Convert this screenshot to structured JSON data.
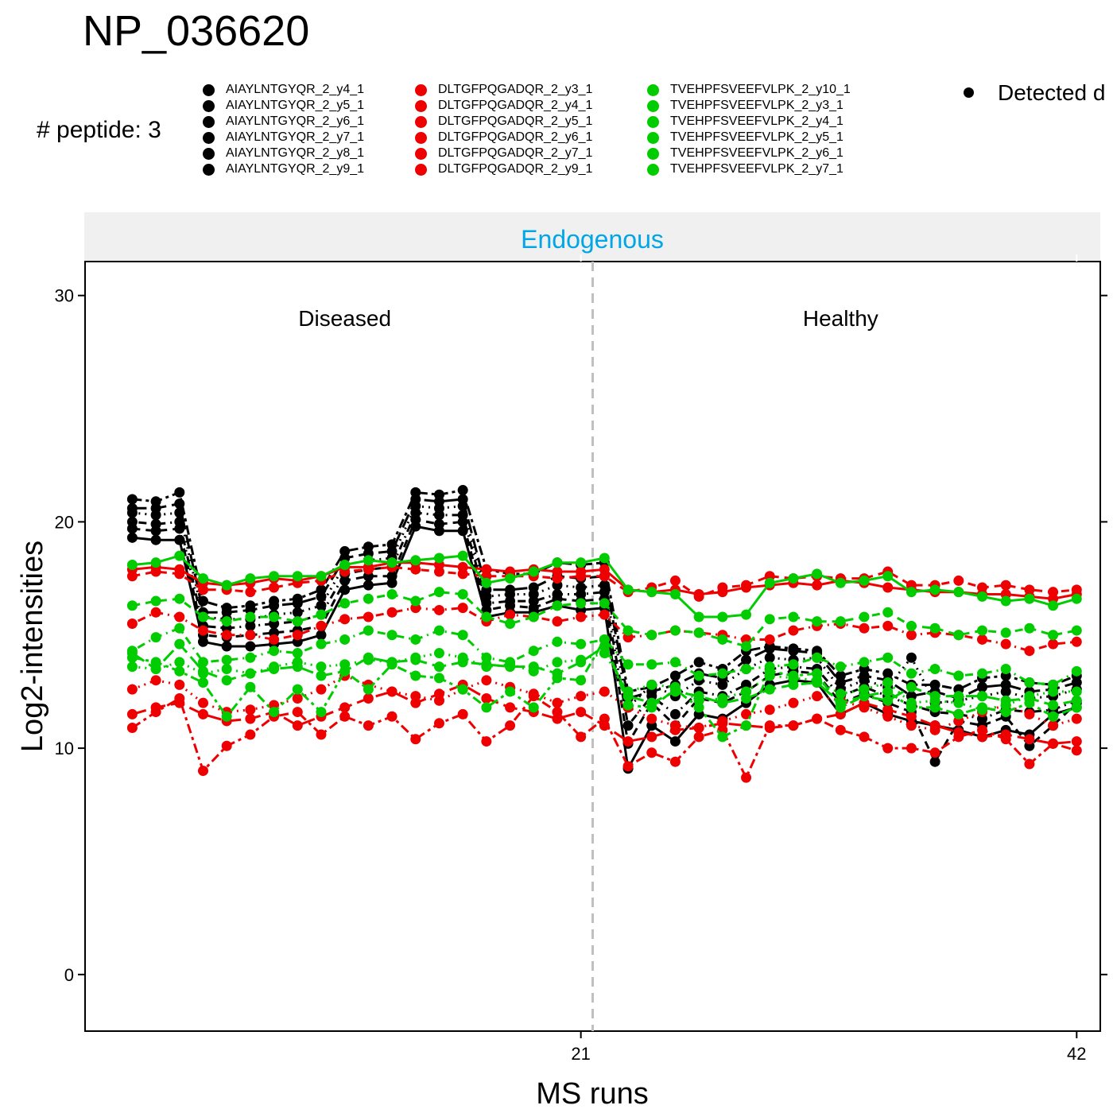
{
  "title": "NP_036620",
  "peptide_count": "# peptide: 3",
  "legend_detected": "Detected d",
  "colors": {
    "AIAYLNTGYQR": "#000000",
    "DLTGFPQGADQR": "#ee0000",
    "TVEHPFSVEEFVLPK": "#00cc00",
    "strip": "#f0f0f0",
    "strip_text": "#00a6e6",
    "divider": "#bfbfbf"
  },
  "legend": [
    {
      "group": "AIAYLNTGYQR",
      "color": "#000000",
      "items": [
        "AIAYLNTGYQR_2_y4_1",
        "AIAYLNTGYQR_2_y5_1",
        "AIAYLNTGYQR_2_y6_1",
        "AIAYLNTGYQR_2_y7_1",
        "AIAYLNTGYQR_2_y8_1",
        "AIAYLNTGYQR_2_y9_1"
      ]
    },
    {
      "group": "DLTGFPQGADQR",
      "color": "#ee0000",
      "items": [
        "DLTGFPQGADQR_2_y3_1",
        "DLTGFPQGADQR_2_y4_1",
        "DLTGFPQGADQR_2_y5_1",
        "DLTGFPQGADQR_2_y6_1",
        "DLTGFPQGADQR_2_y7_1",
        "DLTGFPQGADQR_2_y9_1"
      ]
    },
    {
      "group": "TVEHPFSVEEFVLPK",
      "color": "#00cc00",
      "items": [
        "TVEHPFSVEEFVLPK_2_y10_1",
        "TVEHPFSVEEFVLPK_2_y3_1",
        "TVEHPFSVEEFVLPK_2_y4_1",
        "TVEHPFSVEEFVLPK_2_y5_1",
        "TVEHPFSVEEFVLPK_2_y6_1",
        "TVEHPFSVEEFVLPK_2_y7_1"
      ]
    }
  ],
  "chart_data": {
    "type": "line",
    "strip_label": "Endogenous",
    "xlabel": "MS runs",
    "ylabel": "Log2-intensities",
    "xlim": [
      0,
      43
    ],
    "ylim": [
      -2.5,
      31.5
    ],
    "xticks": [
      21,
      42
    ],
    "yticks": [
      0,
      10,
      20,
      30
    ],
    "condition_divider_x": 21.5,
    "conditions": [
      {
        "label": "Diseased",
        "x": 11,
        "y": 29
      },
      {
        "label": "Healthy",
        "x": 32,
        "y": 29
      }
    ],
    "x": [
      2,
      3,
      4,
      5,
      6,
      7,
      8,
      9,
      10,
      11,
      12,
      13,
      14,
      15,
      16,
      17,
      18,
      19,
      20,
      21,
      22,
      23,
      24,
      25,
      26,
      27,
      28,
      29,
      30,
      31,
      32,
      33,
      34,
      35,
      36,
      37,
      38,
      39,
      40,
      41,
      42
    ],
    "series": [
      {
        "name": "AIAYLNTGYQR_2_y4_1",
        "color": "#000000",
        "dash": "solid",
        "values": [
          19.3,
          19.2,
          19.2,
          14.7,
          14.5,
          14.5,
          14.6,
          14.7,
          15.0,
          17.0,
          17.2,
          17.3,
          19.8,
          19.6,
          19.6,
          15.8,
          16.0,
          16.0,
          16.3,
          16.1,
          16.2,
          9.1,
          11.0,
          10.3,
          11.5,
          11.3,
          12.0,
          12.8,
          13.0,
          12.9,
          11.5,
          12.0,
          11.5,
          11.2,
          11.0,
          10.8,
          10.5,
          10.8,
          10.6,
          11.5,
          11.8
        ]
      },
      {
        "name": "AIAYLNTGYQR_2_y5_1",
        "color": "#000000",
        "dash": "dashed",
        "values": [
          19.7,
          19.6,
          19.7,
          15.0,
          14.9,
          15.0,
          15.1,
          15.2,
          15.4,
          17.4,
          17.6,
          17.6,
          20.1,
          19.9,
          20.0,
          16.1,
          16.3,
          16.2,
          16.6,
          16.5,
          16.6,
          10.2,
          12.0,
          11.0,
          12.2,
          12.0,
          12.5,
          13.2,
          13.4,
          13.3,
          12.0,
          12.4,
          12.0,
          11.6,
          9.4,
          11.2,
          11.0,
          11.4,
          10.1,
          11.0,
          12.0
        ]
      },
      {
        "name": "AIAYLNTGYQR_2_y6_1",
        "color": "#000000",
        "dash": "dotdash",
        "values": [
          20.0,
          19.9,
          20.0,
          15.4,
          15.3,
          15.4,
          15.5,
          15.6,
          15.9,
          17.7,
          17.9,
          18.0,
          20.4,
          20.3,
          20.3,
          16.4,
          16.5,
          16.5,
          16.8,
          16.8,
          16.9,
          11.0,
          12.3,
          11.5,
          12.5,
          12.3,
          12.8,
          13.5,
          13.6,
          13.5,
          12.3,
          12.7,
          12.3,
          11.9,
          11.6,
          11.5,
          11.3,
          11.7,
          11.6,
          11.7,
          12.1
        ]
      },
      {
        "name": "AIAYLNTGYQR_2_y7_1",
        "color": "#000000",
        "dash": "dotted",
        "values": [
          20.4,
          20.3,
          20.4,
          15.8,
          15.7,
          15.7,
          15.9,
          16.0,
          16.3,
          18.1,
          18.3,
          18.4,
          20.7,
          20.6,
          20.7,
          16.7,
          16.8,
          16.8,
          17.2,
          17.1,
          17.2,
          11.8,
          12.8,
          12.3,
          13.0,
          12.8,
          13.5,
          14.0,
          13.9,
          14.0,
          12.6,
          13.0,
          12.7,
          14.0,
          12.0,
          12.1,
          12.3,
          12.5,
          12.2,
          12.3,
          12.6
        ]
      },
      {
        "name": "AIAYLNTGYQR_2_y8_1",
        "color": "#000000",
        "dash": "longdash",
        "values": [
          20.6,
          20.6,
          20.8,
          16.0,
          16.0,
          16.1,
          16.3,
          16.4,
          16.7,
          18.4,
          18.6,
          18.7,
          21.0,
          20.9,
          21.0,
          17.0,
          17.0,
          17.1,
          17.6,
          17.5,
          17.6,
          12.2,
          12.5,
          12.8,
          13.3,
          13.1,
          13.9,
          14.4,
          14.3,
          14.2,
          12.9,
          13.2,
          13.0,
          12.3,
          12.5,
          12.2,
          12.7,
          12.8,
          12.5,
          12.6,
          12.9
        ]
      },
      {
        "name": "AIAYLNTGYQR_2_y9_1",
        "color": "#000000",
        "dash": "twodash",
        "values": [
          21.0,
          20.9,
          21.3,
          16.5,
          16.2,
          16.3,
          16.5,
          16.6,
          17.0,
          18.7,
          18.9,
          19.0,
          21.3,
          21.2,
          21.4,
          17.9,
          17.7,
          17.7,
          18.2,
          18.1,
          18.2,
          12.5,
          12.7,
          13.2,
          13.8,
          13.5,
          14.3,
          14.5,
          14.4,
          14.3,
          13.2,
          13.5,
          13.3,
          12.8,
          12.8,
          12.6,
          13.1,
          13.2,
          12.9,
          12.8,
          13.2
        ]
      },
      {
        "name": "DLTGFPQGADQR_2_y3_1",
        "color": "#ee0000",
        "dash": "solid",
        "values": [
          17.9,
          18.0,
          17.9,
          17.3,
          17.2,
          17.3,
          17.5,
          17.4,
          17.6,
          18.0,
          18.0,
          18.2,
          18.2,
          18.1,
          18.0,
          17.9,
          17.8,
          17.9,
          17.8,
          17.8,
          17.9,
          17.0,
          16.9,
          17.0,
          16.8,
          16.9,
          17.1,
          17.2,
          17.3,
          17.2,
          17.4,
          17.3,
          17.1,
          17.0,
          16.9,
          16.9,
          16.8,
          16.8,
          16.7,
          16.6,
          16.8
        ]
      },
      {
        "name": "DLTGFPQGADQR_2_y4_1",
        "color": "#ee0000",
        "dash": "dashed",
        "values": [
          17.6,
          17.8,
          17.7,
          17.0,
          17.0,
          16.9,
          17.1,
          17.3,
          17.4,
          17.8,
          17.9,
          18.0,
          17.9,
          17.8,
          17.7,
          17.6,
          17.6,
          17.6,
          17.5,
          17.6,
          17.6,
          16.9,
          17.1,
          17.4,
          16.7,
          17.1,
          17.2,
          17.6,
          17.5,
          17.6,
          17.5,
          17.5,
          17.8,
          17.2,
          17.2,
          17.4,
          17.1,
          17.2,
          17.0,
          16.9,
          17.0
        ]
      },
      {
        "name": "DLTGFPQGADQR_2_y5_1",
        "color": "#ee0000",
        "dash": "dotdash",
        "values": [
          15.5,
          16.0,
          15.8,
          15.2,
          15.0,
          15.0,
          14.8,
          15.0,
          15.4,
          15.7,
          15.8,
          16.0,
          16.2,
          16.1,
          16.2,
          15.6,
          15.9,
          15.8,
          15.6,
          15.8,
          15.9,
          14.9,
          15.0,
          15.2,
          15.1,
          15.0,
          14.8,
          14.8,
          15.2,
          15.4,
          15.5,
          15.3,
          15.4,
          15.0,
          15.1,
          15.0,
          14.8,
          14.6,
          14.3,
          14.6,
          14.7
        ]
      },
      {
        "name": "DLTGFPQGADQR_2_y6_1",
        "color": "#ee0000",
        "dash": "dotted",
        "values": [
          12.6,
          13.0,
          12.8,
          12.0,
          11.6,
          11.7,
          11.9,
          12.2,
          12.6,
          13.2,
          12.8,
          12.5,
          12.3,
          12.1,
          12.6,
          13.0,
          12.7,
          12.4,
          12.0,
          12.3,
          12.5,
          11.8,
          11.3,
          11.0,
          10.9,
          11.2,
          11.5,
          11.7,
          12.0,
          12.3,
          12.1,
          11.8,
          11.4,
          11.0,
          10.8,
          11.2,
          11.6,
          11.9,
          11.5,
          11.0,
          11.3
        ]
      },
      {
        "name": "DLTGFPQGADQR_2_y7_1",
        "color": "#ee0000",
        "dash": "longdash",
        "values": [
          11.5,
          11.8,
          12.0,
          11.5,
          11.2,
          11.3,
          11.6,
          11.0,
          11.4,
          11.8,
          12.2,
          12.5,
          12.0,
          12.4,
          12.8,
          12.2,
          11.8,
          11.6,
          11.3,
          11.6,
          11.0,
          10.3,
          10.5,
          10.8,
          10.9,
          11.1,
          11.0,
          10.9,
          11.0,
          11.3,
          11.5,
          12.0,
          11.7,
          11.4,
          11.0,
          10.7,
          10.5,
          10.6,
          10.4,
          10.2,
          10.3
        ]
      },
      {
        "name": "DLTGFPQGADQR_2_y9_1",
        "color": "#ee0000",
        "dash": "twodash",
        "values": [
          10.9,
          11.6,
          12.2,
          9.0,
          10.1,
          10.6,
          11.4,
          11.6,
          10.6,
          11.4,
          11.0,
          11.4,
          10.4,
          11.1,
          11.5,
          10.3,
          11.0,
          12.3,
          11.6,
          10.5,
          11.3,
          9.2,
          9.8,
          9.4,
          10.5,
          10.8,
          8.7,
          11.0,
          11.0,
          11.3,
          10.8,
          10.5,
          10.0,
          10.0,
          9.8,
          10.5,
          10.8,
          10.4,
          9.3,
          10.2,
          9.9
        ]
      },
      {
        "name": "TVEHPFSVEEFVLPK_2_y10_1",
        "color": "#00cc00",
        "dash": "solid",
        "values": [
          18.1,
          18.2,
          18.5,
          17.5,
          17.2,
          17.5,
          17.6,
          17.6,
          17.6,
          18.1,
          18.3,
          18.2,
          18.3,
          18.4,
          18.5,
          17.3,
          17.5,
          17.8,
          18.2,
          18.2,
          18.4,
          17.0,
          16.9,
          16.8,
          15.8,
          15.8,
          15.9,
          17.3,
          17.5,
          17.7,
          17.3,
          17.4,
          17.6,
          16.9,
          17.0,
          16.9,
          16.7,
          16.5,
          16.6,
          16.3,
          16.6
        ]
      },
      {
        "name": "TVEHPFSVEEFVLPK_2_y3_1",
        "color": "#00cc00",
        "dash": "dashed",
        "values": [
          16.3,
          16.5,
          16.6,
          15.8,
          15.6,
          15.8,
          15.8,
          15.6,
          15.9,
          16.4,
          16.6,
          16.8,
          16.5,
          16.9,
          16.8,
          15.8,
          15.5,
          15.8,
          16.3,
          16.4,
          16.4,
          15.2,
          15.0,
          15.2,
          15.1,
          14.8,
          14.5,
          15.7,
          15.8,
          15.6,
          15.6,
          15.8,
          16.0,
          15.4,
          15.3,
          15.0,
          15.2,
          15.1,
          15.3,
          15.0,
          15.2
        ]
      },
      {
        "name": "TVEHPFSVEEFVLPK_2_y4_1",
        "color": "#00cc00",
        "dash": "dotdash",
        "values": [
          14.3,
          14.9,
          15.3,
          13.8,
          13.9,
          14.0,
          14.3,
          14.2,
          14.6,
          14.8,
          15.2,
          15.0,
          14.8,
          15.2,
          15.0,
          14.0,
          13.8,
          14.3,
          14.7,
          14.6,
          14.8,
          13.7,
          13.7,
          13.8,
          13.2,
          13.3,
          13.5,
          13.6,
          13.7,
          14.0,
          13.6,
          13.8,
          14.0,
          13.3,
          13.5,
          13.2,
          13.3,
          13.5,
          12.9,
          12.8,
          13.4
        ]
      },
      {
        "name": "TVEHPFSVEEFVLPK_2_y5_1",
        "color": "#00cc00",
        "dash": "dotted",
        "values": [
          13.6,
          13.5,
          13.8,
          13.3,
          13.5,
          13.3,
          13.6,
          13.8,
          13.6,
          13.7,
          13.9,
          13.8,
          14.0,
          14.2,
          14.0,
          13.6,
          13.7,
          13.4,
          13.8,
          13.9,
          14.2,
          12.5,
          12.8,
          12.7,
          12.1,
          12.2,
          12.5,
          13.2,
          13.1,
          13.0,
          12.4,
          12.6,
          12.9,
          12.0,
          12.1,
          12.0,
          11.7,
          11.9,
          12.3,
          12.5,
          12.5
        ]
      },
      {
        "name": "TVEHPFSVEEFVLPK_2_y6_1",
        "color": "#00cc00",
        "dash": "longdash",
        "values": [
          14.2,
          13.5,
          14.6,
          13.4,
          13.0,
          13.3,
          13.5,
          13.6,
          13.2,
          13.4,
          14.0,
          13.8,
          13.9,
          13.6,
          13.8,
          13.7,
          13.6,
          13.6,
          13.3,
          13.8,
          14.5,
          12.3,
          12.0,
          12.5,
          12.3,
          12.0,
          12.2,
          12.6,
          12.8,
          12.9,
          12.0,
          12.3,
          12.1,
          12.7,
          12.3,
          12.3,
          12.3,
          12.1,
          12.2,
          11.9,
          12.1
        ]
      },
      {
        "name": "TVEHPFSVEEFVLPK_2_y7_1",
        "color": "#00cc00",
        "dash": "twodash",
        "values": [
          14.0,
          13.8,
          13.4,
          12.9,
          11.4,
          12.7,
          11.6,
          12.6,
          11.6,
          13.4,
          12.6,
          13.7,
          13.2,
          13.1,
          12.6,
          11.8,
          12.5,
          11.8,
          13.1,
          13.0,
          14.8,
          11.9,
          11.8,
          12.6,
          11.8,
          10.5,
          11.0,
          13.4,
          13.2,
          13.3,
          11.8,
          12.3,
          12.5,
          11.8,
          11.8,
          11.5,
          11.8,
          11.6,
          12.0,
          11.4,
          11.8
        ]
      }
    ]
  }
}
